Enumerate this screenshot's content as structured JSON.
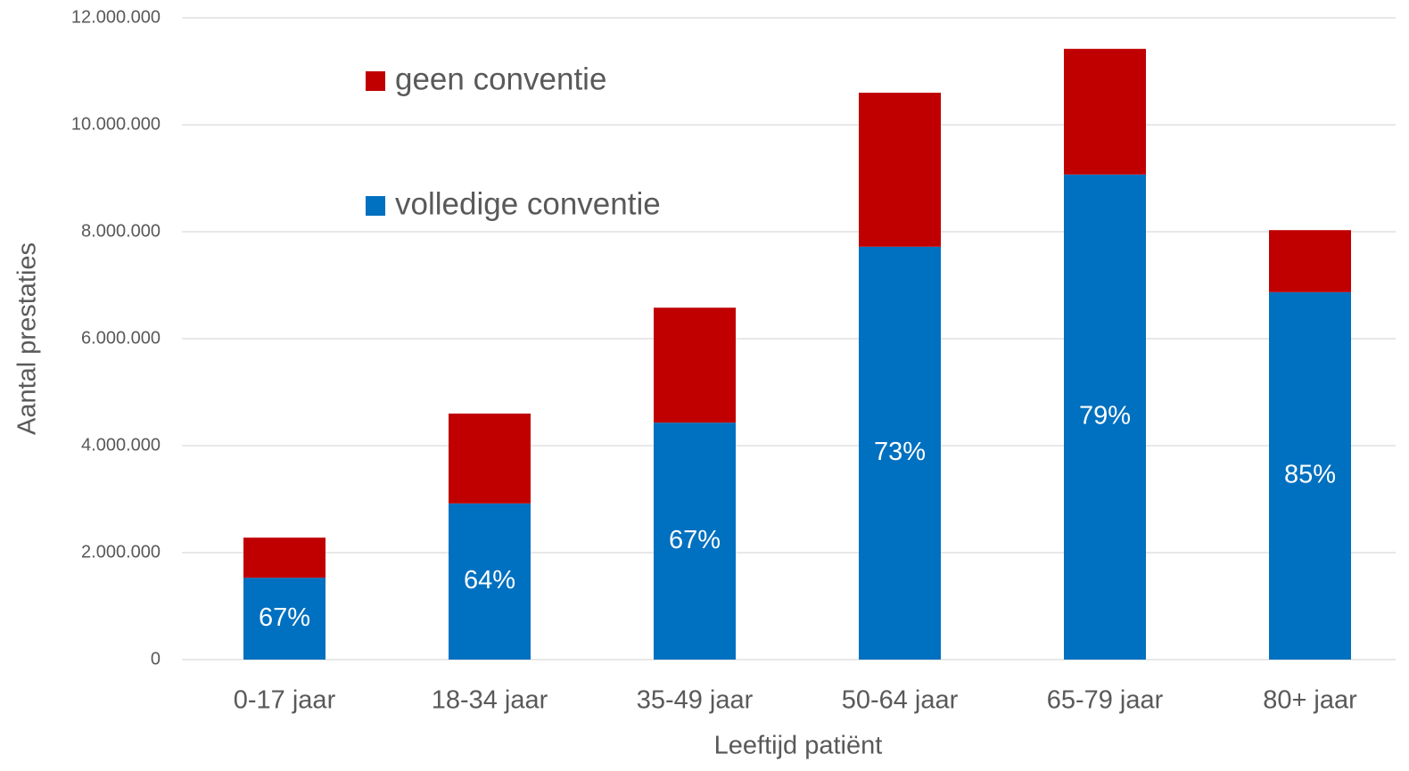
{
  "chart_data": {
    "type": "stacked_bar",
    "x_label": "Leeftijd patiënt",
    "y_label": "Aantal prestaties",
    "categories": [
      "0-17 jaar",
      "18-34 jaar",
      "35-49 jaar",
      "50-64 jaar",
      "65-79 jaar",
      "80+ jaar"
    ],
    "series": [
      {
        "name": "volledige conventie",
        "color": "#0070c0",
        "values": [
          1530000,
          2920000,
          4430000,
          7720000,
          9070000,
          6870000
        ],
        "labels": [
          "67%",
          "64%",
          "67%",
          "73%",
          "79%",
          "85%"
        ]
      },
      {
        "name": "geen conventie",
        "color": "#c00000",
        "values": [
          750000,
          1680000,
          2150000,
          2880000,
          2350000,
          1160000
        ]
      }
    ],
    "ylim": [
      0,
      12000000
    ],
    "yticks": [
      0,
      {
        "value": 2000000,
        "label": "2.000.000"
      },
      {
        "value": 4000000,
        "label": "4.000.000"
      },
      {
        "value": 6000000,
        "label": "6.000.000"
      },
      {
        "value": 8000000,
        "label": "8.000.000"
      },
      {
        "value": 10000000,
        "label": "10.000.000"
      },
      {
        "value": 12000000,
        "label": "12.000.000"
      }
    ],
    "grid": true
  }
}
